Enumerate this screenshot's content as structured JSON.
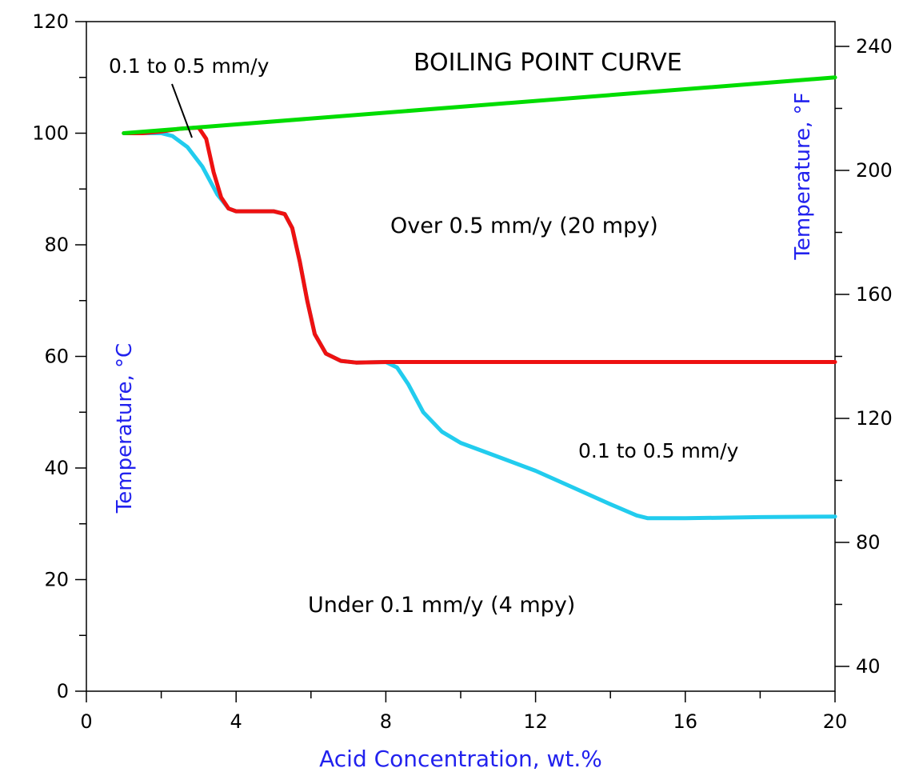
{
  "chart_data": {
    "type": "line",
    "title": "",
    "xlabel": "Acid Concentration, wt.%",
    "ylabel": "Temperature, °C",
    "ylabel2": "Temperature, °F",
    "xlim": [
      0,
      20
    ],
    "ylim": [
      0,
      120
    ],
    "y2lim": [
      32,
      248
    ],
    "x_ticks": [
      "0",
      "4",
      "8",
      "12",
      "16",
      "20"
    ],
    "y_ticks": [
      "0",
      "20",
      "40",
      "60",
      "80",
      "100",
      "120"
    ],
    "y2_ticks": [
      "40",
      "80",
      "120",
      "160",
      "200",
      "240"
    ],
    "grid": false,
    "series": [
      {
        "name": "",
        "color": "#00dd00",
        "points": [
          [
            1,
            100
          ],
          [
            20,
            110
          ]
        ]
      },
      {
        "name": "",
        "color": "#ee1111",
        "points": [
          [
            1,
            100
          ],
          [
            1.5,
            100
          ],
          [
            2,
            100.3
          ],
          [
            2.5,
            100.8
          ],
          [
            3,
            101
          ],
          [
            3.2,
            99
          ],
          [
            3.4,
            93
          ],
          [
            3.6,
            88.5
          ],
          [
            3.8,
            86.5
          ],
          [
            4,
            86
          ],
          [
            4.5,
            86
          ],
          [
            5,
            86
          ],
          [
            5.3,
            85.5
          ],
          [
            5.5,
            83
          ],
          [
            5.7,
            77
          ],
          [
            5.9,
            70
          ],
          [
            6.1,
            64
          ],
          [
            6.4,
            60.5
          ],
          [
            6.8,
            59.2
          ],
          [
            7.2,
            58.9
          ],
          [
            8,
            59
          ],
          [
            12,
            59
          ],
          [
            16,
            59
          ],
          [
            20,
            59
          ]
        ]
      },
      {
        "name": "",
        "color": "#22ccee",
        "points": [
          [
            1,
            100
          ],
          [
            1.5,
            100
          ],
          [
            2,
            100
          ],
          [
            2.3,
            99.5
          ],
          [
            2.7,
            97.5
          ],
          [
            3.1,
            94
          ],
          [
            3.5,
            89
          ],
          [
            3.8,
            86.5
          ],
          [
            4,
            86
          ],
          [
            5,
            86
          ],
          [
            5.3,
            85.5
          ],
          [
            5.5,
            83
          ],
          [
            5.7,
            77
          ],
          [
            5.9,
            70
          ],
          [
            6.1,
            64
          ],
          [
            6.4,
            60.5
          ],
          [
            6.8,
            59.2
          ],
          [
            7.2,
            58.9
          ],
          [
            8,
            59
          ],
          [
            8.3,
            58
          ],
          [
            8.6,
            55
          ],
          [
            9,
            50
          ],
          [
            9.5,
            46.5
          ],
          [
            10,
            44.5
          ],
          [
            11,
            42
          ],
          [
            12,
            39.5
          ],
          [
            13,
            36.5
          ],
          [
            14,
            33.5
          ],
          [
            14.7,
            31.5
          ],
          [
            15,
            31
          ],
          [
            16,
            31
          ],
          [
            18,
            31.2
          ],
          [
            20,
            31.3
          ]
        ]
      }
    ],
    "annotations": [
      "BOILING POINT CURVE",
      "0.1 to 0.5 mm/y",
      "Over 0.5 mm/y (20 mpy)",
      "0.1 to 0.5 mm/y",
      "Under 0.1 mm/y (4 mpy)"
    ]
  },
  "colors": {
    "boiling": "#00dd00",
    "red_curve": "#ee1111",
    "blue_curve": "#22ccee",
    "celsius_label": "#2222ee",
    "fahrenheit_label": "#2222ee",
    "xlabel": "#2222ee"
  }
}
